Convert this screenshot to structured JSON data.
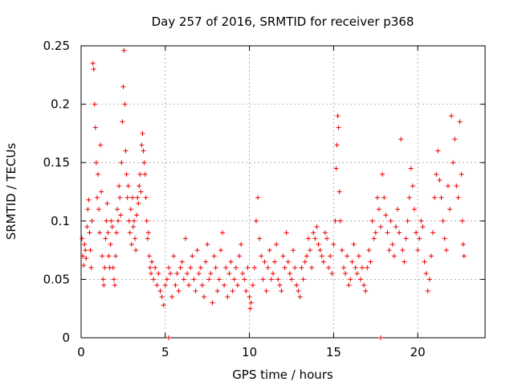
{
  "chart_data": {
    "type": "scatter",
    "title": "Day 257 of 2016, SRMTID for receiver p368",
    "xlabel": "GPS time / hours",
    "ylabel": "SRMTID / TECUs",
    "xlim": [
      0,
      24
    ],
    "ylim": [
      0,
      0.25
    ],
    "x_ticks": [
      0,
      5,
      10,
      15,
      20
    ],
    "x_tick_labels": [
      "0",
      "5",
      "10",
      "15",
      "20"
    ],
    "y_ticks": [
      0,
      0.05,
      0.1,
      0.15,
      0.2,
      0.25
    ],
    "y_tick_labels": [
      "0",
      "0.05",
      "0.1",
      "0.15",
      "0.2",
      "0.25"
    ],
    "grid": true,
    "marker": "plus",
    "color": "#ee0000",
    "series": [
      {
        "name": "p368",
        "points": [
          [
            0.05,
            0.085
          ],
          [
            0.1,
            0.07
          ],
          [
            0.15,
            0.062
          ],
          [
            0.2,
            0.08
          ],
          [
            0.25,
            0.075
          ],
          [
            0.3,
            0.068
          ],
          [
            0.35,
            0.095
          ],
          [
            0.4,
            0.11
          ],
          [
            0.45,
            0.118
          ],
          [
            0.5,
            0.09
          ],
          [
            0.55,
            0.075
          ],
          [
            0.6,
            0.06
          ],
          [
            0.65,
            0.1
          ],
          [
            0.7,
            0.235
          ],
          [
            0.75,
            0.23
          ],
          [
            0.8,
            0.2
          ],
          [
            0.85,
            0.18
          ],
          [
            0.9,
            0.15
          ],
          [
            0.95,
            0.12
          ],
          [
            1.0,
            0.14
          ],
          [
            1.05,
            0.11
          ],
          [
            1.1,
            0.09
          ],
          [
            1.15,
            0.165
          ],
          [
            1.2,
            0.125
          ],
          [
            1.25,
            0.07
          ],
          [
            1.3,
            0.05
          ],
          [
            1.35,
            0.045
          ],
          [
            1.4,
            0.06
          ],
          [
            1.45,
            0.085
          ],
          [
            1.5,
            0.1
          ],
          [
            1.55,
            0.115
          ],
          [
            1.6,
            0.09
          ],
          [
            1.65,
            0.07
          ],
          [
            1.7,
            0.06
          ],
          [
            1.75,
            0.08
          ],
          [
            1.8,
            0.1
          ],
          [
            1.85,
            0.095
          ],
          [
            1.9,
            0.06
          ],
          [
            1.95,
            0.05
          ],
          [
            2.0,
            0.045
          ],
          [
            2.05,
            0.07
          ],
          [
            2.1,
            0.09
          ],
          [
            2.15,
            0.11
          ],
          [
            2.2,
            0.1
          ],
          [
            2.25,
            0.13
          ],
          [
            2.3,
            0.12
          ],
          [
            2.35,
            0.105
          ],
          [
            2.4,
            0.15
          ],
          [
            2.45,
            0.185
          ],
          [
            2.5,
            0.215
          ],
          [
            2.55,
            0.246
          ],
          [
            2.6,
            0.2
          ],
          [
            2.65,
            0.16
          ],
          [
            2.7,
            0.14
          ],
          [
            2.75,
            0.12
          ],
          [
            2.8,
            0.13
          ],
          [
            2.85,
            0.1
          ],
          [
            2.9,
            0.09
          ],
          [
            2.95,
            0.11
          ],
          [
            3.0,
            0.08
          ],
          [
            3.05,
            0.12
          ],
          [
            3.1,
            0.095
          ],
          [
            3.15,
            0.1
          ],
          [
            3.2,
            0.085
          ],
          [
            3.25,
            0.075
          ],
          [
            3.3,
            0.105
          ],
          [
            3.35,
            0.12
          ],
          [
            3.4,
            0.115
          ],
          [
            3.45,
            0.13
          ],
          [
            3.5,
            0.14
          ],
          [
            3.55,
            0.125
          ],
          [
            3.6,
            0.165
          ],
          [
            3.65,
            0.175
          ],
          [
            3.7,
            0.16
          ],
          [
            3.75,
            0.15
          ],
          [
            3.8,
            0.14
          ],
          [
            3.85,
            0.12
          ],
          [
            3.9,
            0.1
          ],
          [
            3.95,
            0.085
          ],
          [
            4.0,
            0.09
          ],
          [
            4.05,
            0.07
          ],
          [
            4.1,
            0.06
          ],
          [
            4.15,
            0.055
          ],
          [
            4.2,
            0.065
          ],
          [
            4.3,
            0.05
          ],
          [
            4.4,
            0.06
          ],
          [
            4.5,
            0.045
          ],
          [
            4.6,
            0.055
          ],
          [
            4.7,
            0.04
          ],
          [
            4.8,
            0.035
          ],
          [
            4.9,
            0.028
          ],
          [
            5.0,
            0.045
          ],
          [
            5.1,
            0.05
          ],
          [
            5.2,
            0.06
          ],
          [
            5.3,
            0.055
          ],
          [
            5.4,
            0.035
          ],
          [
            5.5,
            0.07
          ],
          [
            5.6,
            0.045
          ],
          [
            5.7,
            0.055
          ],
          [
            5.8,
            0.04
          ],
          [
            5.9,
            0.06
          ],
          [
            6.0,
            0.065
          ],
          [
            6.1,
            0.05
          ],
          [
            6.2,
            0.085
          ],
          [
            6.3,
            0.055
          ],
          [
            6.4,
            0.045
          ],
          [
            6.5,
            0.06
          ],
          [
            6.6,
            0.07
          ],
          [
            6.7,
            0.05
          ],
          [
            6.8,
            0.04
          ],
          [
            6.9,
            0.075
          ],
          [
            7.0,
            0.055
          ],
          [
            7.1,
            0.06
          ],
          [
            7.2,
            0.045
          ],
          [
            7.3,
            0.035
          ],
          [
            7.4,
            0.065
          ],
          [
            7.5,
            0.08
          ],
          [
            7.6,
            0.05
          ],
          [
            7.7,
            0.055
          ],
          [
            7.8,
            0.03
          ],
          [
            7.9,
            0.07
          ],
          [
            8.0,
            0.06
          ],
          [
            8.1,
            0.04
          ],
          [
            8.2,
            0.05
          ],
          [
            8.3,
            0.075
          ],
          [
            8.4,
            0.09
          ],
          [
            8.5,
            0.045
          ],
          [
            8.6,
            0.06
          ],
          [
            8.7,
            0.035
          ],
          [
            8.8,
            0.055
          ],
          [
            8.9,
            0.065
          ],
          [
            9.0,
            0.04
          ],
          [
            9.1,
            0.05
          ],
          [
            9.2,
            0.06
          ],
          [
            9.3,
            0.045
          ],
          [
            9.4,
            0.07
          ],
          [
            9.5,
            0.08
          ],
          [
            9.6,
            0.055
          ],
          [
            9.7,
            0.05
          ],
          [
            9.8,
            0.04
          ],
          [
            9.9,
            0.06
          ],
          [
            10.0,
            0.035
          ],
          [
            10.05,
            0.025
          ],
          [
            10.1,
            0.03
          ],
          [
            10.2,
            0.045
          ],
          [
            10.3,
            0.06
          ],
          [
            10.4,
            0.1
          ],
          [
            10.5,
            0.12
          ],
          [
            10.6,
            0.085
          ],
          [
            10.7,
            0.07
          ],
          [
            10.8,
            0.05
          ],
          [
            10.9,
            0.065
          ],
          [
            11.0,
            0.04
          ],
          [
            11.1,
            0.06
          ],
          [
            11.2,
            0.075
          ],
          [
            11.3,
            0.05
          ],
          [
            11.4,
            0.055
          ],
          [
            11.5,
            0.065
          ],
          [
            11.6,
            0.08
          ],
          [
            11.7,
            0.05
          ],
          [
            11.8,
            0.045
          ],
          [
            11.9,
            0.04
          ],
          [
            12.0,
            0.07
          ],
          [
            12.1,
            0.06
          ],
          [
            12.2,
            0.09
          ],
          [
            12.3,
            0.065
          ],
          [
            12.4,
            0.055
          ],
          [
            12.5,
            0.05
          ],
          [
            12.6,
            0.075
          ],
          [
            12.7,
            0.06
          ],
          [
            12.8,
            0.045
          ],
          [
            12.9,
            0.04
          ],
          [
            13.0,
            0.035
          ],
          [
            13.1,
            0.06
          ],
          [
            13.2,
            0.05
          ],
          [
            13.3,
            0.065
          ],
          [
            13.4,
            0.07
          ],
          [
            13.5,
            0.085
          ],
          [
            13.6,
            0.075
          ],
          [
            13.7,
            0.06
          ],
          [
            13.8,
            0.09
          ],
          [
            13.9,
            0.085
          ],
          [
            14.0,
            0.095
          ],
          [
            14.1,
            0.08
          ],
          [
            14.2,
            0.075
          ],
          [
            14.3,
            0.07
          ],
          [
            14.4,
            0.065
          ],
          [
            14.5,
            0.09
          ],
          [
            14.6,
            0.085
          ],
          [
            14.7,
            0.06
          ],
          [
            14.8,
            0.07
          ],
          [
            14.9,
            0.055
          ],
          [
            15.0,
            0.08
          ],
          [
            15.1,
            0.1
          ],
          [
            15.15,
            0.145
          ],
          [
            15.2,
            0.165
          ],
          [
            15.25,
            0.19
          ],
          [
            15.3,
            0.18
          ],
          [
            15.35,
            0.125
          ],
          [
            15.4,
            0.1
          ],
          [
            15.5,
            0.075
          ],
          [
            15.6,
            0.06
          ],
          [
            15.7,
            0.055
          ],
          [
            15.8,
            0.07
          ],
          [
            15.9,
            0.045
          ],
          [
            16.0,
            0.05
          ],
          [
            16.1,
            0.065
          ],
          [
            16.2,
            0.08
          ],
          [
            16.3,
            0.06
          ],
          [
            16.4,
            0.055
          ],
          [
            16.5,
            0.07
          ],
          [
            16.6,
            0.05
          ],
          [
            16.7,
            0.06
          ],
          [
            16.8,
            0.045
          ],
          [
            16.9,
            0.04
          ],
          [
            17.0,
            0.06
          ],
          [
            17.1,
            0.075
          ],
          [
            17.2,
            0.065
          ],
          [
            17.3,
            0.1
          ],
          [
            17.4,
            0.085
          ],
          [
            17.5,
            0.09
          ],
          [
            17.6,
            0.12
          ],
          [
            17.7,
            0.11
          ],
          [
            17.8,
            0.095
          ],
          [
            17.9,
            0.14
          ],
          [
            18.0,
            0.12
          ],
          [
            18.1,
            0.105
          ],
          [
            18.2,
            0.09
          ],
          [
            18.3,
            0.075
          ],
          [
            18.4,
            0.1
          ],
          [
            18.5,
            0.08
          ],
          [
            18.6,
            0.07
          ],
          [
            18.7,
            0.095
          ],
          [
            18.8,
            0.11
          ],
          [
            18.9,
            0.09
          ],
          [
            19.0,
            0.17
          ],
          [
            19.1,
            0.075
          ],
          [
            19.2,
            0.065
          ],
          [
            19.3,
            0.085
          ],
          [
            19.4,
            0.1
          ],
          [
            19.5,
            0.12
          ],
          [
            19.6,
            0.145
          ],
          [
            19.7,
            0.13
          ],
          [
            19.8,
            0.11
          ],
          [
            19.9,
            0.09
          ],
          [
            20.0,
            0.075
          ],
          [
            20.1,
            0.085
          ],
          [
            20.2,
            0.1
          ],
          [
            20.3,
            0.095
          ],
          [
            20.4,
            0.065
          ],
          [
            20.5,
            0.055
          ],
          [
            20.6,
            0.04
          ],
          [
            20.7,
            0.05
          ],
          [
            20.8,
            0.07
          ],
          [
            20.9,
            0.09
          ],
          [
            21.0,
            0.12
          ],
          [
            21.1,
            0.14
          ],
          [
            21.2,
            0.16
          ],
          [
            21.3,
            0.135
          ],
          [
            21.4,
            0.12
          ],
          [
            21.5,
            0.1
          ],
          [
            21.6,
            0.085
          ],
          [
            21.7,
            0.075
          ],
          [
            21.8,
            0.13
          ],
          [
            21.9,
            0.11
          ],
          [
            22.0,
            0.19
          ],
          [
            22.1,
            0.15
          ],
          [
            22.2,
            0.17
          ],
          [
            22.3,
            0.13
          ],
          [
            22.4,
            0.12
          ],
          [
            22.5,
            0.185
          ],
          [
            22.6,
            0.14
          ],
          [
            22.65,
            0.1
          ],
          [
            22.7,
            0.08
          ],
          [
            22.75,
            0.07
          ],
          [
            5.2,
            0.0
          ],
          [
            17.8,
            0.0
          ]
        ]
      }
    ]
  }
}
